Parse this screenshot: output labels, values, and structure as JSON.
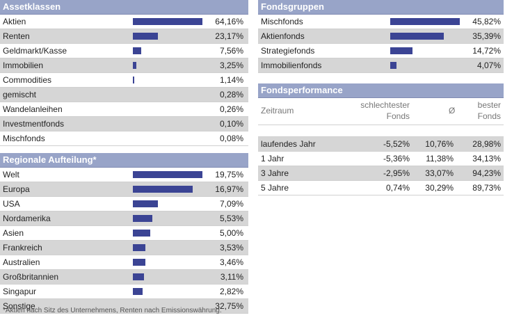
{
  "colors": {
    "header_bg": "#98a4c8",
    "bar": "#3b4494",
    "row_shade": "#d6d6d6"
  },
  "asset_classes": {
    "title": "Assetklassen",
    "rows": [
      {
        "label": "Aktien",
        "value": "64,16%",
        "pct": 64.16
      },
      {
        "label": "Renten",
        "value": "23,17%",
        "pct": 23.17
      },
      {
        "label": "Geldmarkt/Kasse",
        "value": "7,56%",
        "pct": 7.56
      },
      {
        "label": "Immobilien",
        "value": "3,25%",
        "pct": 3.25
      },
      {
        "label": "Commodities",
        "value": "1,14%",
        "pct": 1.14
      },
      {
        "label": "gemischt",
        "value": "0,28%",
        "pct": 0.28
      },
      {
        "label": "Wandelanleihen",
        "value": "0,26%",
        "pct": 0.26
      },
      {
        "label": "Investmentfonds",
        "value": "0,10%",
        "pct": 0.1
      },
      {
        "label": "Mischfonds",
        "value": "0,08%",
        "pct": 0.08
      }
    ]
  },
  "regional": {
    "title": "Regionale Aufteilung*",
    "rows": [
      {
        "label": "Welt",
        "value": "19,75%",
        "pct": 19.75
      },
      {
        "label": "Europa",
        "value": "16,97%",
        "pct": 16.97
      },
      {
        "label": "USA",
        "value": "7,09%",
        "pct": 7.09
      },
      {
        "label": "Nordamerika",
        "value": "5,53%",
        "pct": 5.53
      },
      {
        "label": "Asien",
        "value": "5,00%",
        "pct": 5.0
      },
      {
        "label": "Frankreich",
        "value": "3,53%",
        "pct": 3.53
      },
      {
        "label": "Australien",
        "value": "3,46%",
        "pct": 3.46
      },
      {
        "label": "Großbritannien",
        "value": "3,11%",
        "pct": 3.11
      },
      {
        "label": "Singapur",
        "value": "2,82%",
        "pct": 2.82
      },
      {
        "label": "Sonstige",
        "value": "32,75%",
        "pct": null
      }
    ],
    "footnote": "*Aktien nach Sitz des Unternehmens, Renten nach Emissionswährung."
  },
  "fund_groups": {
    "title": "Fondsgruppen",
    "rows": [
      {
        "label": "Mischfonds",
        "value": "45,82%",
        "pct": 45.82
      },
      {
        "label": "Aktienfonds",
        "value": "35,39%",
        "pct": 35.39
      },
      {
        "label": "Strategiefonds",
        "value": "14,72%",
        "pct": 14.72
      },
      {
        "label": "Immobilienfonds",
        "value": "4,07%",
        "pct": 4.07
      }
    ]
  },
  "performance": {
    "title": "Fondsperformance",
    "col_period": "Zeitraum",
    "col_worst_1": "schlechtester",
    "col_worst_2": "Fonds",
    "col_avg": "Ø",
    "col_best_1": "bester",
    "col_best_2": "Fonds",
    "rows": [
      {
        "period": "laufendes Jahr",
        "worst": "-5,52%",
        "avg": "10,76%",
        "best": "28,98%"
      },
      {
        "period": "1 Jahr",
        "worst": "-5,36%",
        "avg": "11,38%",
        "best": "34,13%"
      },
      {
        "period": "3 Jahre",
        "worst": "-2,95%",
        "avg": "33,07%",
        "best": "94,23%"
      },
      {
        "period": "5 Jahre",
        "worst": "0,74%",
        "avg": "30,29%",
        "best": "89,73%"
      }
    ]
  }
}
